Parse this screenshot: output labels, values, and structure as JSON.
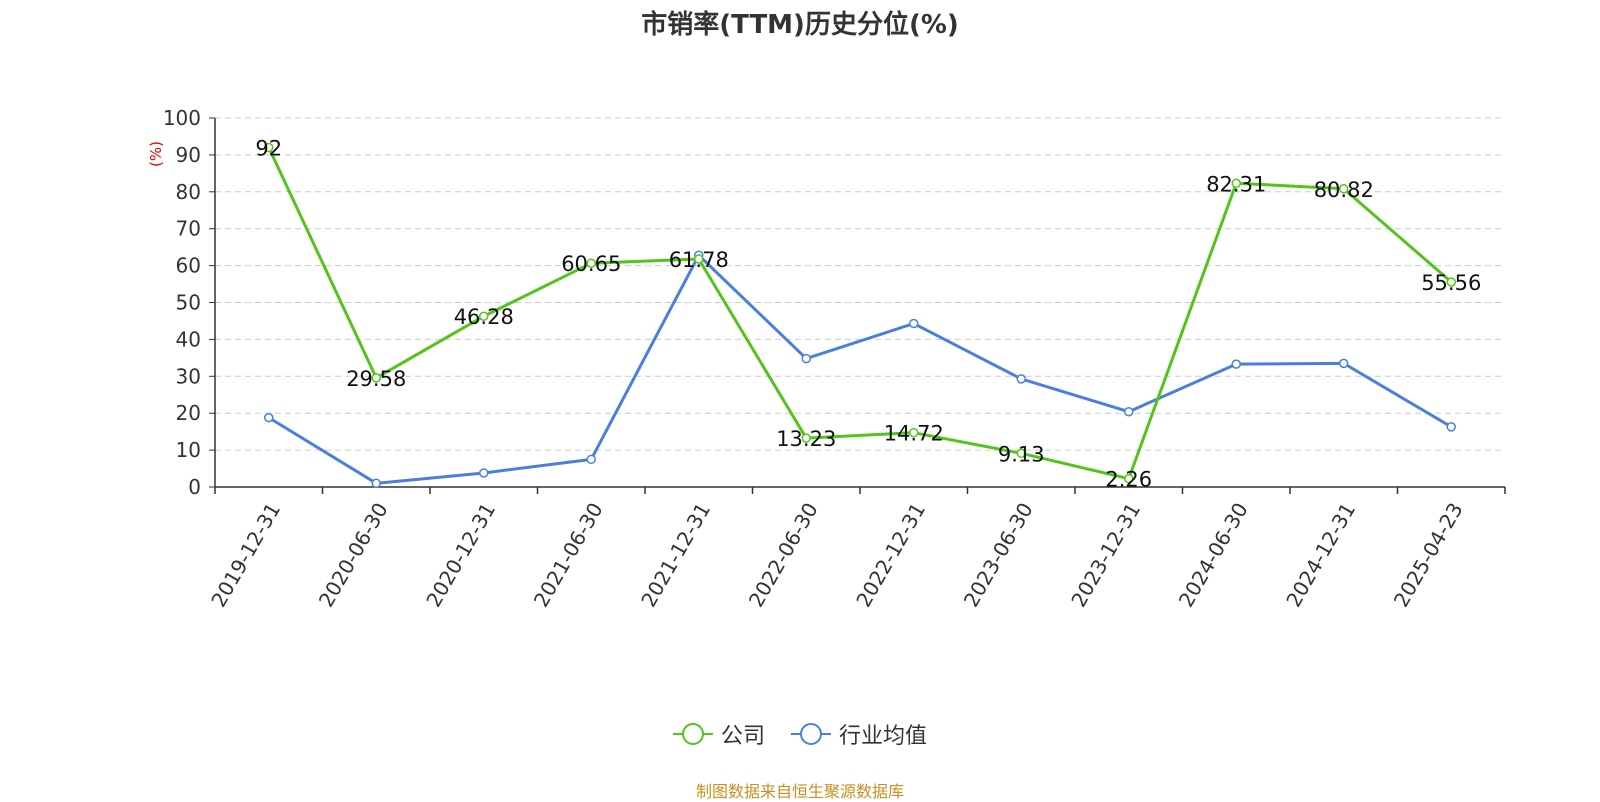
{
  "chart_data": {
    "type": "line",
    "title": "市销率(TTM)历史分位(%)",
    "ylabel": "(%)",
    "ylim": [
      0,
      100
    ],
    "yticks": [
      0,
      10,
      20,
      30,
      40,
      50,
      60,
      70,
      80,
      90,
      100
    ],
    "grid": true,
    "legend_position": "bottom",
    "categories": [
      "2019-12-31",
      "2020-06-30",
      "2020-12-31",
      "2021-06-30",
      "2021-12-31",
      "2022-06-30",
      "2022-12-31",
      "2023-06-30",
      "2023-12-31",
      "2024-06-30",
      "2024-12-31",
      "2025-04-23"
    ],
    "series": [
      {
        "name": "公司",
        "color": "#52c41a",
        "show_labels": true,
        "labels": [
          "92",
          "29.58",
          "46.28",
          "60.65",
          "61.78",
          "13.23",
          "14.72",
          "9.13",
          "2.26",
          "82.31",
          "80.82",
          "55.56"
        ],
        "values": [
          92,
          29.58,
          46.28,
          60.65,
          61.78,
          13.23,
          14.72,
          9.13,
          2.26,
          82.31,
          80.82,
          55.56
        ]
      },
      {
        "name": "行业均值",
        "color": "#4a7fe0",
        "show_labels": false,
        "values": [
          18.8,
          1.0,
          3.8,
          7.5,
          62.8,
          34.8,
          44.3,
          29.3,
          20.4,
          33.3,
          33.5,
          16.3
        ]
      }
    ]
  },
  "source": "制图数据来自恒生聚源数据库"
}
